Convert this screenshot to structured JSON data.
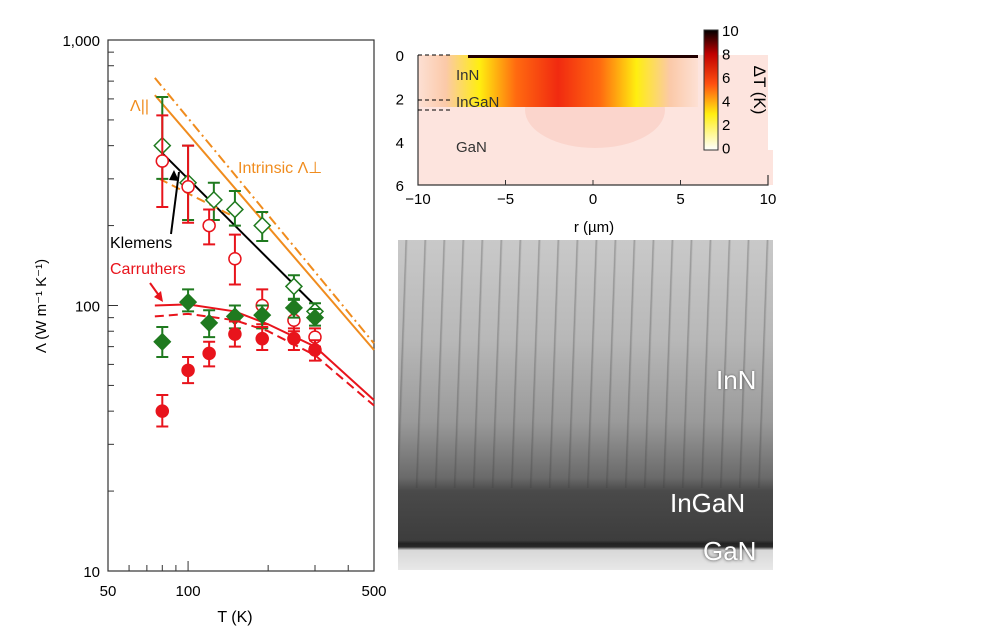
{
  "chart_data": [
    {
      "type": "scatter",
      "title": "",
      "xlabel": "T (K)",
      "ylabel": "Λ (W m⁻¹ K⁻¹)",
      "xscale": "log",
      "yscale": "log",
      "xlim": [
        50,
        500
      ],
      "ylim": [
        10,
        1000
      ],
      "xticks": [
        "50",
        "100",
        "500"
      ],
      "yticks": [
        "10",
        "100",
        "1,000"
      ],
      "series": [
        {
          "name": "open-diamond-green",
          "color": "#1f7a1f",
          "marker": "diamond-open",
          "x": [
            80,
            100,
            125,
            150,
            190,
            250,
            300
          ],
          "y": [
            400,
            290,
            250,
            230,
            200,
            118,
            95
          ],
          "err": [
            [
              300,
              610
            ],
            [
              210,
              400
            ],
            [
              210,
              290
            ],
            [
              200,
              270
            ],
            [
              175,
              225
            ],
            [
              105,
              130
            ],
            [
              88,
              102
            ]
          ]
        },
        {
          "name": "open-circle-red",
          "color": "#e8141c",
          "marker": "circle-open",
          "x": [
            80,
            100,
            120,
            150,
            190,
            250,
            300
          ],
          "y": [
            350,
            280,
            200,
            150,
            100,
            88,
            76
          ],
          "err": [
            [
              235,
              520
            ],
            [
              205,
              400
            ],
            [
              170,
              230
            ],
            [
              120,
              185
            ],
            [
              85,
              115
            ],
            [
              80,
              96
            ],
            [
              70,
              82
            ]
          ]
        },
        {
          "name": "filled-diamond-green",
          "color": "#1f7a1f",
          "marker": "diamond-filled",
          "x": [
            80,
            100,
            120,
            150,
            190,
            250,
            300
          ],
          "y": [
            73,
            103,
            86,
            91,
            92,
            98,
            90
          ],
          "err": [
            [
              64,
              83
            ],
            [
              95,
              115
            ],
            [
              76,
              96
            ],
            [
              82,
              100
            ],
            [
              82,
              100
            ],
            [
              90,
              106
            ],
            [
              84,
              97
            ]
          ]
        },
        {
          "name": "filled-circle-red",
          "color": "#e8141c",
          "marker": "circle-filled",
          "x": [
            80,
            100,
            120,
            150,
            190,
            250,
            300
          ],
          "y": [
            40,
            57,
            66,
            78,
            75,
            75,
            68
          ],
          "err": [
            [
              35,
              46
            ],
            [
              51,
              64
            ],
            [
              59,
              73
            ],
            [
              70,
              87
            ],
            [
              68,
              83
            ],
            [
              68,
              82
            ],
            [
              62,
              74
            ]
          ]
        }
      ],
      "lines": [
        {
          "name": "klemens",
          "color": "#000000",
          "style": "solid",
          "x": [
            75,
            300
          ],
          "y": [
            400,
            100
          ]
        },
        {
          "name": "lambda-parallel",
          "color": "#f08c1e",
          "style": "solid",
          "x": [
            75,
            500
          ],
          "y": [
            620,
            68
          ]
        },
        {
          "name": "intrinsic-lambda-perp",
          "color": "#f08c1e",
          "style": "dashdot",
          "x": [
            75,
            500
          ],
          "y": [
            720,
            72
          ]
        },
        {
          "name": "orange-dashed",
          "color": "#f08c1e",
          "style": "dashed",
          "x": [
            78,
            150
          ],
          "y": [
            300,
            215
          ]
        },
        {
          "name": "carruthers",
          "color": "#e8141c",
          "style": "solid",
          "x": [
            75,
            100,
            150,
            200,
            300,
            500
          ],
          "y": [
            100,
            101,
            95,
            85,
            70,
            44
          ]
        },
        {
          "name": "carruthers-dashed",
          "color": "#e8141c",
          "style": "dashed",
          "x": [
            75,
            100,
            150,
            200,
            300,
            500
          ],
          "y": [
            91,
            93,
            88,
            80,
            65,
            42
          ]
        }
      ],
      "annotations": {
        "lambda_par": "Λ||",
        "intrinsic": "Intrinsic Λ⊥",
        "klemens": "Klemens",
        "carruthers": "Carruthers"
      }
    },
    {
      "type": "heatmap",
      "xlabel": "r (µm)",
      "xlim": [
        -10,
        10
      ],
      "ylim": [
        6,
        0
      ],
      "xticks": [
        "−10",
        "−5",
        "0",
        "5",
        "10"
      ],
      "yticks": [
        "0",
        "2",
        "4",
        "6"
      ],
      "colorbar": {
        "label": "ΔT (K)",
        "range": [
          0,
          10
        ],
        "ticks": [
          "10",
          "8",
          "6",
          "4",
          "2",
          "0"
        ]
      },
      "layers": [
        "InN",
        "InGaN",
        "GaN"
      ]
    }
  ],
  "tem": {
    "labels": [
      "InN",
      "InGaN",
      "GaN"
    ]
  }
}
